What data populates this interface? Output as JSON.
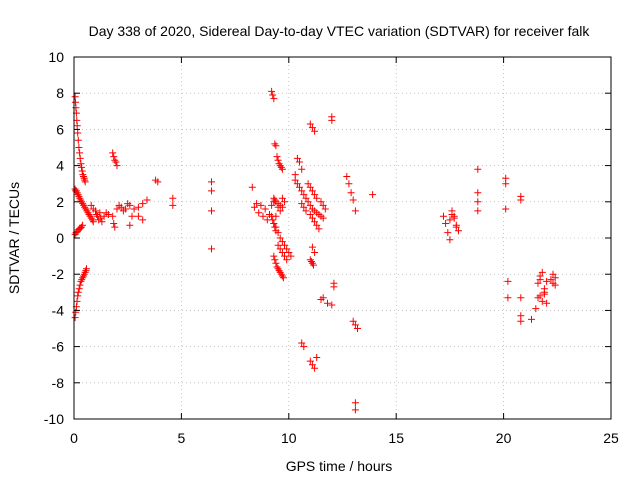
{
  "chart_data": {
    "type": "scatter",
    "title": "Day 338 of 2020, Sidereal Day-to-day VTEC variation (SDTVAR) for receiver falk",
    "xlabel": "GPS time / hours",
    "ylabel": "SDTVAR / TECUs",
    "xlim": [
      0,
      25
    ],
    "ylim": [
      -10,
      10
    ],
    "xticks": [
      0,
      5,
      10,
      15,
      20,
      25
    ],
    "yticks": [
      -10,
      -8,
      -6,
      -4,
      -2,
      0,
      2,
      4,
      6,
      8,
      10
    ],
    "grid": true,
    "marker": "plus",
    "color": "#ff0000",
    "series": [
      {
        "name": "SDTVAR",
        "x": [
          0.05,
          0.07,
          0.09,
          0.11,
          0.13,
          0.15,
          0.17,
          0.2,
          0.23,
          0.26,
          0.29,
          0.32,
          0.35,
          0.38,
          0.41,
          0.44,
          0.47,
          0.5,
          0.52,
          0.05,
          0.08,
          0.11,
          0.14,
          0.17,
          0.2,
          0.24,
          0.28,
          0.32,
          0.36,
          0.4,
          0.44,
          0.48,
          0.52,
          0.55,
          0.58,
          0.05,
          0.08,
          0.11,
          0.15,
          0.19,
          0.23,
          0.27,
          0.31,
          0.35,
          0.4,
          0.45,
          0.5,
          0.55,
          0.6,
          0.65,
          0.7,
          0.75,
          0.8,
          0.85,
          0.9,
          0.05,
          0.1,
          0.15,
          0.2,
          0.25,
          0.3,
          0.35,
          0.4,
          0.8,
          0.9,
          1.0,
          1.05,
          1.1,
          1.15,
          1.2,
          1.25,
          1.3,
          1.4,
          1.5,
          1.6,
          1.8,
          1.85,
          1.9,
          2.0,
          2.1,
          2.2,
          2.3,
          2.4,
          2.5,
          2.6,
          2.7,
          2.8,
          3.0,
          3.2,
          3.4,
          1.8,
          1.85,
          1.9,
          1.95,
          2.0,
          2.6,
          3.0,
          3.2,
          3.8,
          3.9,
          4.6,
          4.6,
          6.4,
          6.4,
          6.4,
          6.4,
          8.3,
          8.4,
          8.5,
          8.6,
          8.7,
          8.8,
          8.9,
          9.0,
          9.1,
          9.2,
          9.3,
          9.4,
          9.5,
          9.6,
          9.7,
          9.8,
          9.2,
          9.25,
          9.3,
          9.35,
          9.4,
          9.45,
          9.5,
          9.55,
          9.6,
          9.65,
          9.7,
          9.3,
          9.35,
          9.4,
          9.5,
          9.6,
          9.7,
          9.3,
          9.35,
          9.4,
          9.3,
          9.35,
          9.4,
          9.45,
          9.5,
          9.55,
          9.6,
          9.65,
          9.7,
          9.75,
          9.2,
          9.25,
          9.3,
          9.4,
          9.5,
          9.6,
          9.7,
          9.8,
          9.9,
          10.0,
          10.1,
          9.5,
          9.6,
          9.7,
          9.8,
          9.9,
          10.3,
          10.4,
          10.5,
          10.6,
          10.7,
          10.8,
          10.9,
          11.0,
          11.1,
          11.2,
          11.3,
          11.4,
          11.5,
          11.6,
          10.4,
          10.5,
          10.6,
          10.3,
          10.6,
          10.7,
          10.8,
          11.0,
          11.1,
          11.2,
          11.3,
          11.4,
          10.9,
          11.0,
          11.1,
          11.2,
          11.3,
          11.5,
          11.6,
          11.7,
          11.0,
          11.1,
          11.2,
          10.6,
          10.7,
          11.0,
          11.1,
          11.2,
          11.3,
          11.5,
          11.6,
          11.8,
          11.0,
          11.05,
          11.1,
          11.15,
          11.1,
          11.2,
          12.0,
          12.0,
          12.1,
          12.1,
          12.0,
          12.7,
          12.8,
          12.9,
          13.0,
          13.1,
          13.0,
          13.1,
          13.2,
          13.1,
          13.1,
          13.9,
          17.2,
          17.3,
          17.4,
          17.5,
          17.6,
          17.7,
          17.8,
          17.5,
          17.6,
          17.7,
          17.8,
          17.9,
          18.8,
          18.8,
          18.8,
          18.8,
          20.1,
          20.1,
          20.1,
          20.2,
          20.2,
          20.8,
          20.8,
          20.8,
          20.8,
          20.8,
          21.3,
          21.5,
          21.6,
          21.7,
          21.8,
          21.9,
          22.0,
          21.6,
          21.7,
          21.9,
          22.0,
          21.7,
          21.8,
          21.9,
          22.2,
          22.3,
          22.3,
          22.4,
          22.4
        ],
        "y": [
          7.8,
          7.5,
          7.2,
          6.9,
          6.5,
          6.2,
          5.8,
          5.4,
          5.0,
          4.7,
          4.4,
          4.1,
          3.9,
          3.7,
          3.5,
          3.4,
          3.3,
          3.2,
          3.1,
          -4.4,
          -4.1,
          -3.8,
          -3.5,
          -3.2,
          -3.0,
          -2.8,
          -2.6,
          -2.4,
          -2.3,
          -2.2,
          -2.1,
          -2.0,
          -1.9,
          -1.8,
          -1.7,
          2.7,
          2.6,
          2.6,
          2.5,
          2.4,
          2.3,
          2.2,
          2.1,
          2.0,
          1.9,
          1.8,
          1.7,
          1.6,
          1.5,
          1.4,
          1.3,
          1.2,
          1.1,
          1.0,
          0.9,
          0.2,
          0.3,
          0.35,
          0.45,
          0.5,
          0.55,
          0.6,
          0.7,
          1.8,
          1.6,
          1.5,
          1.3,
          1.2,
          1.0,
          1.4,
          1.1,
          0.9,
          1.2,
          1.4,
          1.3,
          1.2,
          0.8,
          0.6,
          1.6,
          1.8,
          1.7,
          1.5,
          1.6,
          1.9,
          1.8,
          1.2,
          1.6,
          1.7,
          1.9,
          2.1,
          4.7,
          4.5,
          4.3,
          4.2,
          4.0,
          0.7,
          1.2,
          1.0,
          3.2,
          3.1,
          2.2,
          1.8,
          3.1,
          2.6,
          1.5,
          -0.6,
          2.8,
          1.7,
          1.9,
          1.4,
          1.8,
          1.2,
          1.6,
          1.0,
          1.3,
          1.8,
          2.0,
          1.2,
          1.7,
          1.5,
          2.2,
          2.0,
          8.1,
          7.9,
          7.7,
          5.2,
          5.1,
          4.5,
          4.3,
          4.1,
          4.0,
          3.9,
          3.8,
          2.2,
          2.1,
          2.0,
          1.9,
          1.8,
          1.7,
          0.8,
          0.6,
          0.4,
          -1.0,
          -1.2,
          -1.4,
          -1.6,
          -1.7,
          -1.8,
          -1.9,
          -2.0,
          -2.1,
          -2.2,
          1.2,
          1.0,
          0.8,
          0.6,
          0.3,
          0.0,
          -0.2,
          -0.4,
          -0.6,
          -0.8,
          -1.0,
          -0.4,
          -0.6,
          -0.8,
          -1.0,
          -1.2,
          3.2,
          3.0,
          2.8,
          2.6,
          2.4,
          2.2,
          2.0,
          1.8,
          1.6,
          1.5,
          1.4,
          1.3,
          1.2,
          1.1,
          4.4,
          4.2,
          3.8,
          3.5,
          1.9,
          1.7,
          1.5,
          1.3,
          1.1,
          0.9,
          0.7,
          0.5,
          3.0,
          2.8,
          2.6,
          2.4,
          2.2,
          2.0,
          1.8,
          1.6,
          6.3,
          6.1,
          5.9,
          -5.8,
          -6.0,
          -6.8,
          -7.0,
          -7.2,
          -6.6,
          -3.4,
          -3.3,
          -3.6,
          -1.2,
          -1.3,
          -1.4,
          -1.5,
          -0.5,
          -0.8,
          6.7,
          6.5,
          -2.5,
          -2.7,
          -3.7,
          3.4,
          3.0,
          2.5,
          2.1,
          1.5,
          -4.6,
          -4.8,
          -5.0,
          -9.1,
          -9.5,
          2.4,
          1.2,
          0.8,
          0.3,
          1.0,
          1.3,
          1.1,
          0.6,
          -0.1,
          1.5,
          1.2,
          0.7,
          0.4,
          3.8,
          2.5,
          2.0,
          1.5,
          3.3,
          3.0,
          1.6,
          -2.4,
          -3.3,
          2.3,
          2.1,
          -3.3,
          -4.3,
          -4.6,
          -4.5,
          -3.9,
          -3.3,
          -3.2,
          -3.5,
          -2.8,
          -2.4,
          -2.5,
          -2.3,
          -3.1,
          -3.6,
          -2.1,
          -1.9,
          -3.0,
          -2.3,
          -2.0,
          -2.5,
          -2.2,
          -2.6
        ]
      }
    ]
  }
}
